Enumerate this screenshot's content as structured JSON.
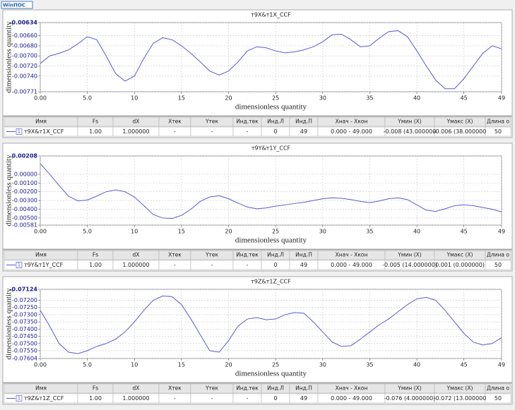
{
  "app_title": "WinПОС",
  "chart_data": [
    {
      "type": "line",
      "title": "т9X&т1X_CCF",
      "x_label": "dimensionless quantity",
      "y_label": "dimensionless quantity",
      "x": [
        0,
        1,
        2,
        3,
        4,
        5,
        6,
        7,
        8,
        9,
        10,
        11,
        12,
        13,
        14,
        15,
        16,
        17,
        18,
        19,
        20,
        21,
        22,
        23,
        24,
        25,
        26,
        27,
        28,
        29,
        30,
        31,
        32,
        33,
        34,
        35,
        36,
        37,
        38,
        39,
        40,
        41,
        42,
        43,
        44,
        45,
        46,
        47,
        48,
        49
      ],
      "series": [
        {
          "name": "т9X&т1X_CCF",
          "color": "#5a5ad8",
          "values": [
            -0.00715,
            -0.007,
            -0.00695,
            -0.00688,
            -0.00676,
            -0.00662,
            -0.00668,
            -0.007,
            -0.00735,
            -0.0075,
            -0.0074,
            -0.00705,
            -0.00675,
            -0.00664,
            -0.00668,
            -0.0068,
            -0.00695,
            -0.00712,
            -0.0073,
            -0.00738,
            -0.0073,
            -0.00712,
            -0.0069,
            -0.00682,
            -0.00684,
            -0.0069,
            -0.00694,
            -0.00692,
            -0.00688,
            -0.00682,
            -0.00672,
            -0.00658,
            -0.00657,
            -0.00668,
            -0.00682,
            -0.0068,
            -0.00665,
            -0.00652,
            -0.0065,
            -0.00662,
            -0.0069,
            -0.0072,
            -0.00748,
            -0.00765,
            -0.00765,
            -0.00745,
            -0.0072,
            -0.00695,
            -0.0068,
            -0.00686
          ]
        }
      ],
      "xlim": [
        0,
        49
      ],
      "xticks": [
        {
          "value": 0,
          "label": "0.00"
        },
        {
          "value": 5,
          "label": "5.0"
        },
        10,
        15,
        20,
        25,
        30,
        35,
        40,
        45,
        49
      ],
      "ylim": [
        -0.00771,
        -0.00634
      ],
      "yticks": [
        {
          "value": -0.00771,
          "label": "-0.00771"
        },
        {
          "value": -0.0074,
          "label": "-0.00740"
        },
        {
          "value": -0.0072,
          "label": "-0.00720"
        },
        {
          "value": -0.007,
          "label": "-0.00700"
        },
        {
          "value": -0.0068,
          "label": "-0.00680"
        },
        {
          "value": -0.0066,
          "label": "-0.00660"
        },
        {
          "value": -0.00634,
          "label": "-0.00634"
        }
      ],
      "grid": true
    },
    {
      "type": "line",
      "title": "т9Y&т1Y_CCF",
      "x_label": "dimensionless quantity",
      "y_label": "dimensionless quantity",
      "x": [
        0,
        1,
        2,
        3,
        4,
        5,
        6,
        7,
        8,
        9,
        10,
        11,
        12,
        13,
        14,
        15,
        16,
        17,
        18,
        19,
        20,
        21,
        22,
        23,
        24,
        25,
        26,
        27,
        28,
        29,
        30,
        31,
        32,
        33,
        34,
        35,
        36,
        37,
        38,
        39,
        40,
        41,
        42,
        43,
        44,
        45,
        46,
        47,
        48,
        49
      ],
      "series": [
        {
          "name": "т9Y&т1Y_CCF",
          "color": "#5a5ad8",
          "values": [
            0.0012,
            0.0,
            -0.0013,
            -0.0025,
            -0.00305,
            -0.00295,
            -0.0025,
            -0.002,
            -0.0018,
            -0.002,
            -0.0026,
            -0.0036,
            -0.0046,
            -0.005,
            -0.00505,
            -0.0047,
            -0.004,
            -0.0031,
            -0.0026,
            -0.00245,
            -0.0028,
            -0.0033,
            -0.00375,
            -0.00395,
            -0.00385,
            -0.00365,
            -0.0035,
            -0.00335,
            -0.0032,
            -0.003,
            -0.0028,
            -0.0027,
            -0.00275,
            -0.0029,
            -0.0031,
            -0.00325,
            -0.00305,
            -0.0028,
            -0.0027,
            -0.0029,
            -0.0035,
            -0.0041,
            -0.00425,
            -0.00395,
            -0.0036,
            -0.0035,
            -0.0036,
            -0.0038,
            -0.004,
            -0.0043
          ]
        }
      ],
      "xlim": [
        0,
        49
      ],
      "xticks": [
        {
          "value": 0,
          "label": "0.00"
        },
        {
          "value": 5,
          "label": "5.0"
        },
        10,
        15,
        20,
        25,
        30,
        35,
        40,
        45,
        49
      ],
      "ylim": [
        -0.00581,
        0.00208
      ],
      "yticks": [
        {
          "value": -0.00581,
          "label": "-0.00581"
        },
        {
          "value": -0.005,
          "label": "-0.00500"
        },
        {
          "value": -0.004,
          "label": "-0.00400"
        },
        {
          "value": -0.003,
          "label": "-0.00300"
        },
        {
          "value": -0.002,
          "label": "-0.00200"
        },
        {
          "value": -0.001,
          "label": "-0.00100"
        },
        {
          "value": 0,
          "label": "0.00000"
        },
        {
          "value": 0.00208,
          "label": "0.00208"
        }
      ],
      "grid": true
    },
    {
      "type": "line",
      "title": "т9Z&т1Z_CCF",
      "x_label": "dimensionless quantity",
      "y_label": "dimensionless quantity",
      "x": [
        0,
        1,
        2,
        3,
        4,
        5,
        6,
        7,
        8,
        9,
        10,
        11,
        12,
        13,
        14,
        15,
        16,
        17,
        18,
        19,
        20,
        21,
        22,
        23,
        24,
        25,
        26,
        27,
        28,
        29,
        30,
        31,
        32,
        33,
        34,
        35,
        36,
        37,
        38,
        39,
        40,
        41,
        42,
        43,
        44,
        45,
        46,
        47,
        48,
        49
      ],
      "series": [
        {
          "name": "т9Z&т1Z_CCF",
          "color": "#5a5ad8",
          "values": [
            -0.0727,
            -0.0738,
            -0.075,
            -0.0756,
            -0.0757,
            -0.0755,
            -0.0752,
            -0.075,
            -0.0747,
            -0.0742,
            -0.0735,
            -0.0727,
            -0.072,
            -0.0717,
            -0.07175,
            -0.0723,
            -0.0733,
            -0.0744,
            -0.0755,
            -0.0756,
            -0.0748,
            -0.0738,
            -0.0733,
            -0.0732,
            -0.07335,
            -0.0733,
            -0.073,
            -0.07285,
            -0.0729,
            -0.0735,
            -0.0742,
            -0.0749,
            -0.0752,
            -0.07515,
            -0.0747,
            -0.0742,
            -0.0737,
            -0.0733,
            -0.0728,
            -0.0723,
            -0.0719,
            -0.0718,
            -0.072,
            -0.0727,
            -0.0735,
            -0.0743,
            -0.0749,
            -0.0751,
            -0.075,
            -0.0746
          ]
        }
      ],
      "xlim": [
        0,
        49
      ],
      "xticks": [
        {
          "value": 0,
          "label": "0.00"
        },
        {
          "value": 5,
          "label": "5.0"
        },
        10,
        15,
        20,
        25,
        30,
        35,
        40,
        45,
        49
      ],
      "ylim": [
        -0.07604,
        -0.07124
      ],
      "yticks": [
        {
          "value": -0.07604,
          "label": "-0.07604"
        },
        {
          "value": -0.0755,
          "label": "-0.07550"
        },
        {
          "value": -0.075,
          "label": "-0.07500"
        },
        {
          "value": -0.0745,
          "label": "-0.07450"
        },
        {
          "value": -0.074,
          "label": "-0.07400"
        },
        {
          "value": -0.0735,
          "label": "-0.07350"
        },
        {
          "value": -0.073,
          "label": "-0.07300"
        },
        {
          "value": -0.0725,
          "label": "-0.07250"
        },
        {
          "value": -0.072,
          "label": "-0.07200"
        },
        {
          "value": -0.07124,
          "label": "-0.07124"
        }
      ],
      "grid": true
    }
  ],
  "tables": [
    {
      "columns": [
        "Имя",
        "Fs",
        "dX",
        "Xтек",
        "Yтек",
        "Инд.тек",
        "Инд.Л",
        "Инд.П",
        "Xнач - Xкон",
        "Yмин (X)",
        "Yмакс (X)",
        "Длина о"
      ],
      "row_index": "1",
      "cells": [
        "1.00",
        "1.000000",
        "-",
        "-",
        "-",
        "0",
        "49",
        "0.000 - 49.000",
        "-0.008 (43.000000",
        "-0.006 (38.000000",
        "50"
      ]
    },
    {
      "columns": [
        "Имя",
        "Fs",
        "dX",
        "Xтек",
        "Yтек",
        "Инд.тек",
        "Инд.Л",
        "Инд.П",
        "Xнач - Xкон",
        "Yмин (X)",
        "Yмакс (X)",
        "Длина о"
      ],
      "row_index": "1",
      "cells": [
        "1.00",
        "1.000000",
        "-",
        "-",
        "-",
        "0",
        "49",
        "0.000 - 49.000",
        "-0.005 (14.000000)",
        "0.001 (0.000000)",
        "50"
      ]
    },
    {
      "columns": [
        "Имя",
        "Fs",
        "dX",
        "Xтек",
        "Yтек",
        "Инд.тек",
        "Инд.Л",
        "Инд.П",
        "Xнач - Xкон",
        "Yмин (X)",
        "Yмакс (X)",
        "Длина о"
      ],
      "row_index": "1",
      "cells": [
        "1.00",
        "1.000000",
        "-",
        "-",
        "-",
        "0",
        "49",
        "0.000 - 49.000",
        "-0.076 (4.000000)",
        "-0.072 (13.000000",
        "50"
      ]
    }
  ]
}
